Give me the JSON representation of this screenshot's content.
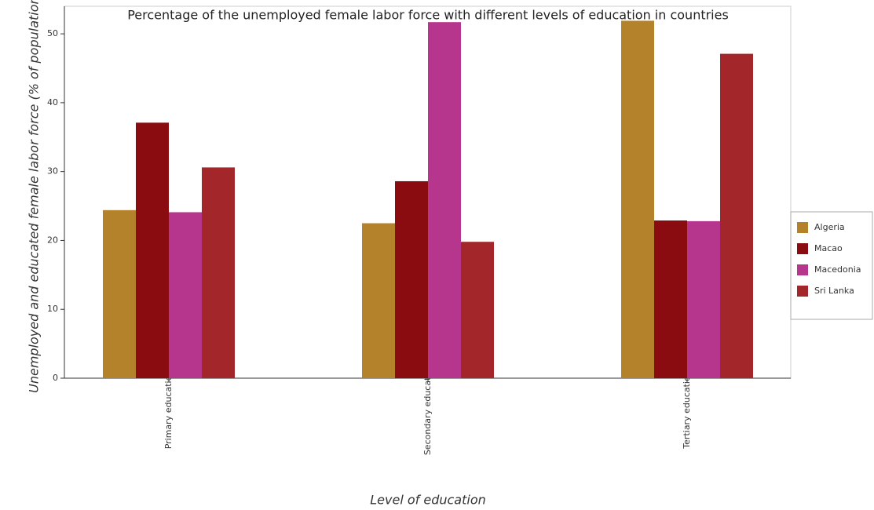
{
  "chart_data": {
    "type": "bar",
    "title": "Percentage of the unemployed female labor force with different levels of education in countries",
    "xlabel": "Level of education",
    "ylabel": "Unemployed and educated female labor force (% of population)",
    "categories": [
      "Primary education",
      "Secondary education",
      "Tertiary education"
    ],
    "series": [
      {
        "name": "Algeria",
        "color": "#b5822c",
        "values": [
          24.4,
          22.5,
          51.9
        ]
      },
      {
        "name": "Macao",
        "color": "#8b0c10",
        "values": [
          37.1,
          28.6,
          22.9
        ]
      },
      {
        "name": "Macedonia",
        "color": "#b5368c",
        "values": [
          24.1,
          51.7,
          22.8
        ]
      },
      {
        "name": "Sri Lanka",
        "color": "#a3262a",
        "values": [
          30.6,
          19.8,
          47.1
        ]
      }
    ],
    "ylim": [
      0,
      54
    ],
    "yticks": [
      0,
      10,
      20,
      30,
      40,
      50
    ],
    "grid": false,
    "legend": "right"
  }
}
